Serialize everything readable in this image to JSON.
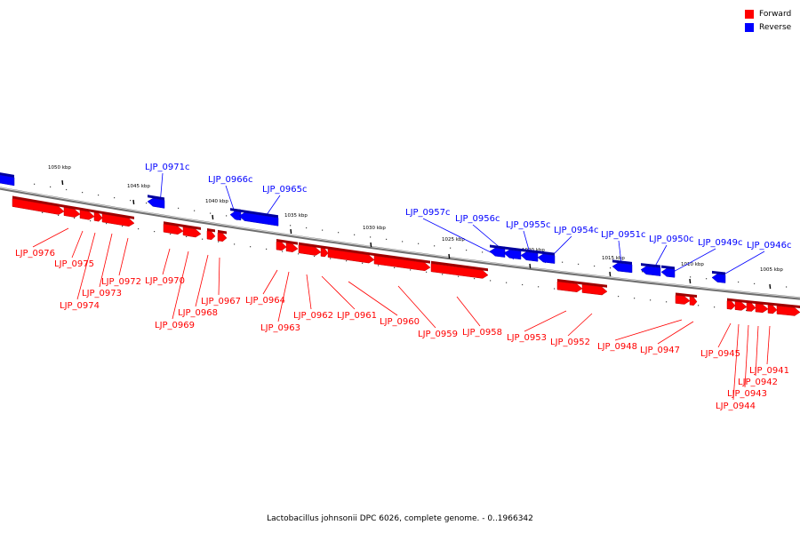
{
  "legend": {
    "forward_label": "Forward",
    "reverse_label": "Reverse",
    "forward_color": "#ff0000",
    "reverse_color": "#0000ff"
  },
  "caption": "Lactobacillus johnsonii DPC 6026, complete genome. - 0..1966342",
  "ticks": [
    {
      "kbp": 1050,
      "label": "1050 kbp"
    },
    {
      "kbp": 1045,
      "label": "1045 kbp"
    },
    {
      "kbp": 1040,
      "label": "1040 kbp"
    },
    {
      "kbp": 1035,
      "label": "1035 kbp"
    },
    {
      "kbp": 1030,
      "label": "1030 kbp"
    },
    {
      "kbp": 1025,
      "label": "1025 kbp"
    },
    {
      "kbp": 1020,
      "label": "1020 kbp"
    },
    {
      "kbp": 1015,
      "label": "1015 kbp"
    },
    {
      "kbp": 1010,
      "label": "1010 kbp"
    },
    {
      "kbp": 1005,
      "label": "1005 kbp"
    }
  ],
  "genes": [
    {
      "name": "LJP_0976",
      "strand": "forward"
    },
    {
      "name": "LJP_0975",
      "strand": "forward"
    },
    {
      "name": "LJP_0974",
      "strand": "forward"
    },
    {
      "name": "LJP_0973",
      "strand": "forward"
    },
    {
      "name": "LJP_0972",
      "strand": "forward"
    },
    {
      "name": "LJP_0971c",
      "strand": "reverse"
    },
    {
      "name": "LJP_0970",
      "strand": "forward"
    },
    {
      "name": "LJP_0969",
      "strand": "forward"
    },
    {
      "name": "LJP_0968",
      "strand": "forward"
    },
    {
      "name": "LJP_0967",
      "strand": "forward"
    },
    {
      "name": "LJP_0966c",
      "strand": "reverse"
    },
    {
      "name": "LJP_0965c",
      "strand": "reverse"
    },
    {
      "name": "LJP_0964",
      "strand": "forward"
    },
    {
      "name": "LJP_0963",
      "strand": "forward"
    },
    {
      "name": "LJP_0962",
      "strand": "forward"
    },
    {
      "name": "LJP_0961",
      "strand": "forward"
    },
    {
      "name": "LJP_0960",
      "strand": "forward"
    },
    {
      "name": "LJP_0959",
      "strand": "forward"
    },
    {
      "name": "LJP_0958",
      "strand": "forward"
    },
    {
      "name": "LJP_0957c",
      "strand": "reverse"
    },
    {
      "name": "LJP_0956c",
      "strand": "reverse"
    },
    {
      "name": "LJP_0955c",
      "strand": "reverse"
    },
    {
      "name": "LJP_0954c",
      "strand": "reverse"
    },
    {
      "name": "LJP_0953",
      "strand": "forward"
    },
    {
      "name": "LJP_0952",
      "strand": "forward"
    },
    {
      "name": "LJP_0951c",
      "strand": "reverse"
    },
    {
      "name": "LJP_0950c",
      "strand": "reverse"
    },
    {
      "name": "LJP_0949c",
      "strand": "reverse"
    },
    {
      "name": "LJP_0948",
      "strand": "forward"
    },
    {
      "name": "LJP_0947",
      "strand": "forward"
    },
    {
      "name": "LJP_0946c",
      "strand": "reverse"
    },
    {
      "name": "LJP_0945",
      "strand": "forward"
    },
    {
      "name": "LJP_0944",
      "strand": "forward"
    },
    {
      "name": "LJP_0943",
      "strand": "forward"
    },
    {
      "name": "LJP_0942",
      "strand": "forward"
    },
    {
      "name": "LJP_0941",
      "strand": "forward"
    }
  ]
}
